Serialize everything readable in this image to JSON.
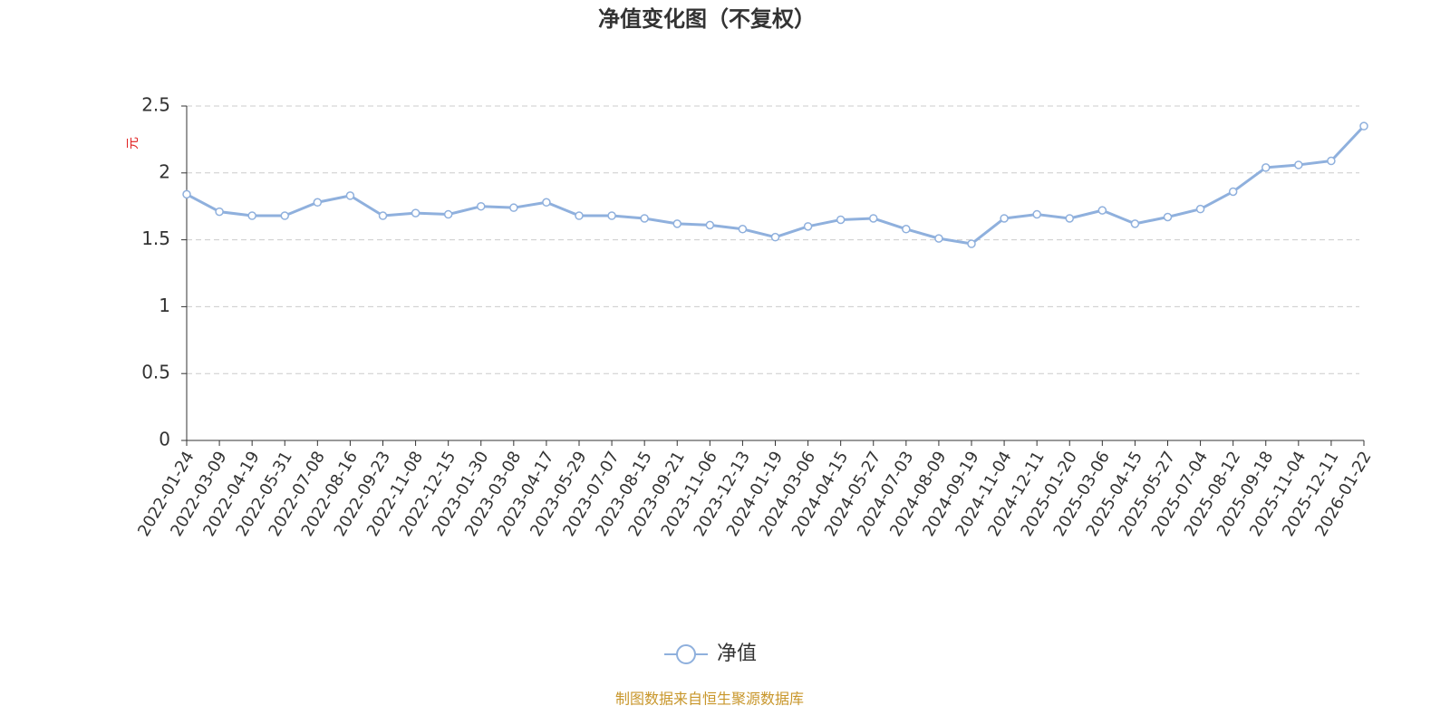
{
  "chart_data": {
    "type": "line",
    "title": "净值变化图（不复权）",
    "y_label": "元",
    "source": "制图数据来自恒生聚源数据库",
    "x": [
      "2022-01-24",
      "2022-03-09",
      "2022-04-19",
      "2022-05-31",
      "2022-07-08",
      "2022-08-16",
      "2022-09-23",
      "2022-11-08",
      "2022-12-15",
      "2023-01-30",
      "2023-03-08",
      "2023-04-17",
      "2023-05-29",
      "2023-07-07",
      "2023-08-15",
      "2023-09-21",
      "2023-11-06",
      "2023-12-13",
      "2024-01-19",
      "2024-03-06",
      "2024-04-15",
      "2024-05-27",
      "2024-07-03",
      "2024-08-09",
      "2024-09-19",
      "2024-11-04",
      "2024-12-11",
      "2025-01-20",
      "2025-03-06",
      "2025-04-15",
      "2025-05-27",
      "2025-07-04",
      "2025-08-12",
      "2025-09-18",
      "2025-11-04",
      "2025-12-11",
      "2026-01-22"
    ],
    "series": [
      {
        "name": "净值",
        "color": "#8fb0dd",
        "values": [
          1.84,
          1.71,
          1.68,
          1.68,
          1.78,
          1.83,
          1.68,
          1.7,
          1.69,
          1.75,
          1.74,
          1.78,
          1.68,
          1.68,
          1.66,
          1.62,
          1.61,
          1.58,
          1.52,
          1.6,
          1.65,
          1.66,
          1.58,
          1.51,
          1.47,
          1.66,
          1.69,
          1.66,
          1.72,
          1.62,
          1.67,
          1.73,
          1.86,
          2.04,
          2.06,
          2.09,
          2.35
        ]
      }
    ],
    "ylim": [
      0,
      2.5
    ],
    "yticks": [
      0,
      0.5,
      1,
      1.5,
      2,
      2.5
    ],
    "grid": true,
    "legend": "bottom"
  }
}
